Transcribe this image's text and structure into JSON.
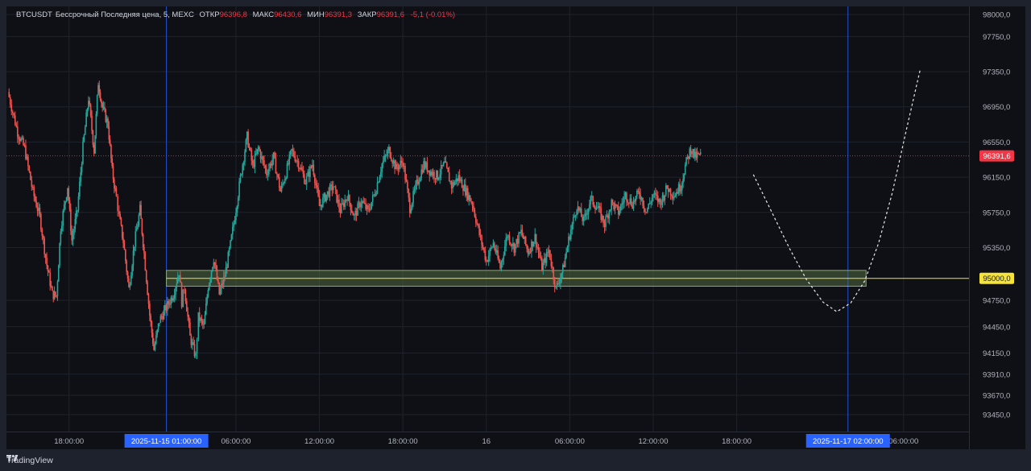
{
  "legend": {
    "symbol": "BTCUSDT",
    "description": "Бессрочный Последняя цена, 5, MEXC",
    "open_label": "ОТКР",
    "open_value": "96396,8",
    "high_label": "МАКС",
    "high_value": "96430,6",
    "low_label": "МИН",
    "low_value": "96391,3",
    "close_label": "ЗАКР",
    "close_value": "96391,6",
    "change": "-5,1 (-0.01%)"
  },
  "colors": {
    "background": "#0f1016",
    "up": "#26a69a",
    "down": "#ef5350",
    "price_label": "#f23645",
    "level_label": "#f5e33a",
    "time_marker": "#2962ff"
  },
  "chart_data": {
    "type": "candlestick",
    "title": "",
    "xlabel": "",
    "ylabel": "",
    "ylim": [
      93250,
      98050
    ],
    "y_ticks": [
      "98000,0",
      "97750,0",
      "97350,0",
      "96950,0",
      "96550,0",
      "96150,0",
      "95750,0",
      "95350,0",
      "94750,0",
      "94450,0",
      "94150,0",
      "93910,0",
      "93670,0",
      "93450,0"
    ],
    "y_tick_values": [
      98000,
      97750,
      97350,
      96950,
      96550,
      96150,
      95750,
      95350,
      94750,
      94450,
      94150,
      93910,
      93670,
      93450
    ],
    "x_ticks": [
      "18:00:00",
      "06:00:00",
      "12:00:00",
      "18:00:00",
      "16",
      "06:00:00",
      "12:00:00",
      "18:00:00",
      "06:00:00"
    ],
    "x_tick_hours": [
      -6,
      6,
      12,
      18,
      24,
      30,
      36,
      42,
      54
    ],
    "x_range_hours": [
      -10.5,
      58.7
    ],
    "markers": [
      {
        "label": "2025-11-15   01:00:00",
        "hour": 1
      },
      {
        "label": "2025-11-17   02:00:00",
        "hour": 50
      }
    ],
    "current_price": {
      "label": "96391,6",
      "value": 96391.6
    },
    "level": {
      "label": "95000,0",
      "value": 95000
    },
    "zone": {
      "from_hour": 1,
      "to_hour": 51.3,
      "low": 94910,
      "high": 95090
    },
    "projection": [
      [
        43.2,
        96180
      ],
      [
        44.5,
        95760
      ],
      [
        45.8,
        95340
      ],
      [
        47,
        94990
      ],
      [
        48.2,
        94730
      ],
      [
        49.2,
        94620
      ],
      [
        50.2,
        94720
      ],
      [
        51.2,
        94970
      ],
      [
        52.2,
        95400
      ],
      [
        53.2,
        95980
      ],
      [
        54.2,
        96690
      ],
      [
        55.2,
        97380
      ]
    ],
    "price_path": [
      [
        -10.4,
        97120
      ],
      [
        -9.7,
        96660
      ],
      [
        -9.2,
        96480
      ],
      [
        -8.6,
        95980
      ],
      [
        -8.1,
        95700
      ],
      [
        -7.6,
        95150
      ],
      [
        -7.2,
        94820
      ],
      [
        -6.9,
        94800
      ],
      [
        -6.6,
        95580
      ],
      [
        -6.1,
        96050
      ],
      [
        -5.8,
        95430
      ],
      [
        -5.4,
        95780
      ],
      [
        -5.0,
        96500
      ],
      [
        -4.6,
        97050
      ],
      [
        -4.2,
        96450
      ],
      [
        -3.9,
        97230
      ],
      [
        -3.6,
        96940
      ],
      [
        -3.2,
        96750
      ],
      [
        -2.9,
        96220
      ],
      [
        -2.6,
        95920
      ],
      [
        -2.4,
        95700
      ],
      [
        -2.1,
        95420
      ],
      [
        -1.7,
        94880
      ],
      [
        -1.3,
        95400
      ],
      [
        -0.9,
        95780
      ],
      [
        -0.6,
        95280
      ],
      [
        -0.2,
        94580
      ],
      [
        0.1,
        94190
      ],
      [
        0.5,
        94520
      ],
      [
        0.9,
        94640
      ],
      [
        1.5,
        94820
      ],
      [
        1.9,
        95080
      ],
      [
        2.1,
        94730
      ],
      [
        2.3,
        94900
      ],
      [
        2.7,
        94330
      ],
      [
        3.1,
        94110
      ],
      [
        3.3,
        94560
      ],
      [
        3.7,
        94450
      ],
      [
        4.0,
        94910
      ],
      [
        4.4,
        95230
      ],
      [
        4.8,
        94820
      ],
      [
        5.2,
        95030
      ],
      [
        5.6,
        95380
      ],
      [
        6.0,
        95790
      ],
      [
        6.4,
        96230
      ],
      [
        6.8,
        96610
      ],
      [
        7.2,
        96270
      ],
      [
        7.6,
        96480
      ],
      [
        8.2,
        96200
      ],
      [
        8.7,
        96380
      ],
      [
        9.2,
        95990
      ],
      [
        9.6,
        96200
      ],
      [
        10.0,
        96450
      ],
      [
        10.5,
        96310
      ],
      [
        11.0,
        96100
      ],
      [
        11.5,
        96300
      ],
      [
        12.0,
        95820
      ],
      [
        12.5,
        95950
      ],
      [
        13.0,
        96050
      ],
      [
        13.5,
        95770
      ],
      [
        14.0,
        95940
      ],
      [
        14.5,
        95700
      ],
      [
        15.0,
        95880
      ],
      [
        15.5,
        95760
      ],
      [
        16.0,
        95980
      ],
      [
        16.5,
        96300
      ],
      [
        17.0,
        96460
      ],
      [
        17.5,
        96250
      ],
      [
        18.0,
        96330
      ],
      [
        18.5,
        95800
      ],
      [
        19.0,
        96070
      ],
      [
        19.5,
        96300
      ],
      [
        20.0,
        96210
      ],
      [
        20.5,
        96160
      ],
      [
        21.0,
        96300
      ],
      [
        21.5,
        96050
      ],
      [
        22.0,
        96150
      ],
      [
        22.5,
        96000
      ],
      [
        23.0,
        95850
      ],
      [
        23.5,
        95500
      ],
      [
        24.0,
        95200
      ],
      [
        24.5,
        95400
      ],
      [
        25.0,
        95120
      ],
      [
        25.5,
        95500
      ],
      [
        26.0,
        95350
      ],
      [
        26.5,
        95530
      ],
      [
        27.0,
        95300
      ],
      [
        27.5,
        95470
      ],
      [
        28.0,
        95120
      ],
      [
        28.5,
        95320
      ],
      [
        29.0,
        94880
      ],
      [
        29.5,
        95100
      ],
      [
        30.0,
        95500
      ],
      [
        30.5,
        95820
      ],
      [
        31.0,
        95650
      ],
      [
        31.5,
        95900
      ],
      [
        32.0,
        95800
      ],
      [
        32.5,
        95620
      ],
      [
        33.0,
        95860
      ],
      [
        33.5,
        95750
      ],
      [
        34.0,
        95950
      ],
      [
        34.5,
        95850
      ],
      [
        35.0,
        95980
      ],
      [
        35.5,
        95760
      ],
      [
        36.0,
        95950
      ],
      [
        36.5,
        95860
      ],
      [
        37.0,
        96030
      ],
      [
        37.5,
        95950
      ],
      [
        38.0,
        96060
      ],
      [
        38.3,
        96280
      ],
      [
        38.7,
        96480
      ],
      [
        39.0,
        96380
      ],
      [
        39.4,
        96400
      ]
    ]
  }
}
